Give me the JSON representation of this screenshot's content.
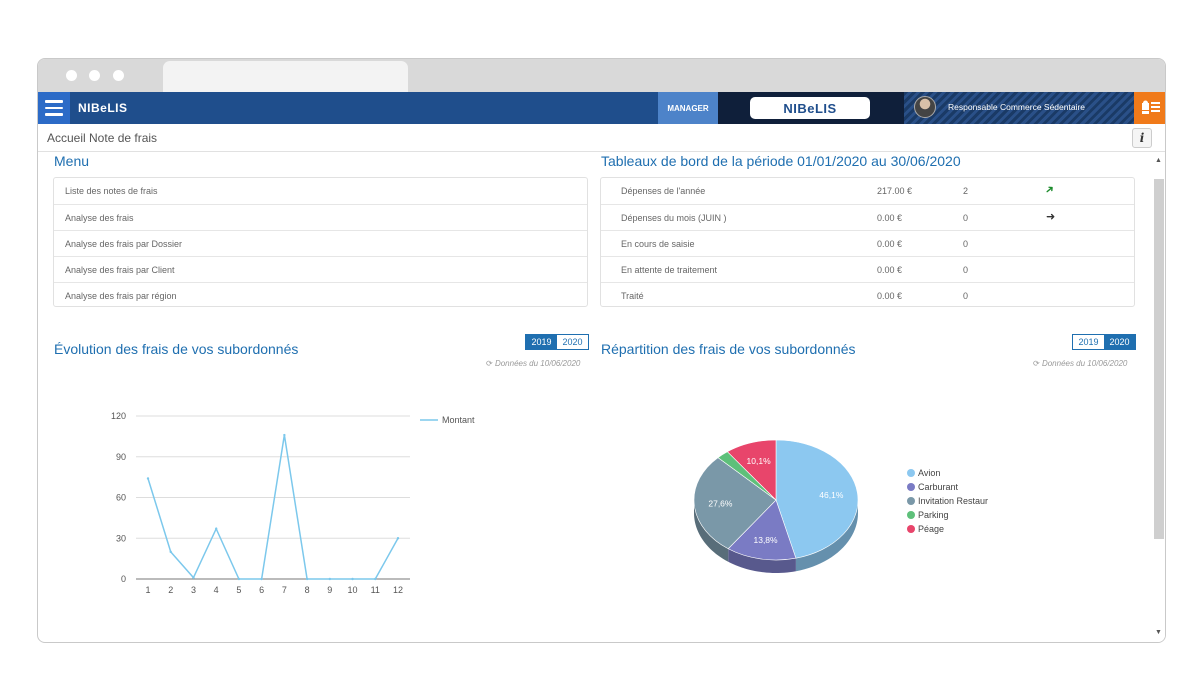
{
  "app": {
    "brand_small": "NIBeLIS",
    "brand_center": "NIBeLIS",
    "role": "MANAGER",
    "user": "Responsable Commerce Sédentaire"
  },
  "breadcrumb": "Accueil Note de frais",
  "info_label": "i",
  "menu": {
    "title": "Menu",
    "items": [
      "Liste des notes de frais",
      "Analyse des frais",
      "Analyse des frais par Dossier",
      "Analyse des frais par Client",
      "Analyse des frais par région"
    ]
  },
  "dashboard": {
    "title": "Tableaux de bord de la période 01/01/2020 au 30/06/2020",
    "rows": [
      {
        "label": "Dépenses de l'année",
        "amount": "217.00 €",
        "count": "2",
        "trend": "up"
      },
      {
        "label": "Dépenses du mois (JUIN )",
        "amount": "0.00 €",
        "count": "0",
        "trend": "flat"
      },
      {
        "label": "En cours de saisie",
        "amount": "0.00 €",
        "count": "0",
        "trend": ""
      },
      {
        "label": "En attente de traitement",
        "amount": "0.00 €",
        "count": "0",
        "trend": ""
      },
      {
        "label": "Traité",
        "amount": "0.00 €",
        "count": "0",
        "trend": ""
      }
    ],
    "colors": {
      "trend_up": "#1a8a2a",
      "trend_flat": "#333333"
    }
  },
  "evolution": {
    "title": "Évolution des frais de vos subordonnés",
    "years": [
      "2019",
      "2020"
    ],
    "active_year": "2019",
    "refresh_note": "Données du 10/06/2020"
  },
  "repartition": {
    "title": "Répartition des frais de vos subordonnés",
    "years": [
      "2019",
      "2020"
    ],
    "active_year": "2020",
    "refresh_note": "Données du 10/06/2020"
  },
  "chart_data": [
    {
      "type": "line",
      "x": [
        1,
        2,
        3,
        4,
        5,
        6,
        7,
        8,
        9,
        10,
        11,
        12
      ],
      "series": [
        {
          "name": "Montant",
          "values": [
            74,
            20,
            1,
            37,
            0,
            0,
            106,
            0,
            0,
            0,
            0,
            30
          ],
          "color": "#7cc8ec"
        }
      ],
      "yticks": [
        0,
        30,
        60,
        90,
        120
      ],
      "ylim": [
        0,
        120
      ],
      "grid": true,
      "legend": "top-right"
    },
    {
      "type": "pie",
      "categories": [
        "Avion",
        "Carburant",
        "Invitation Restaurant",
        "Parking",
        "Péage"
      ],
      "values": [
        46.1,
        13.8,
        27.6,
        2.4,
        10.1
      ],
      "labels": [
        "46,1%",
        "13,8%",
        "27,6%",
        "",
        "10,1%"
      ],
      "colors": [
        "#8cc8f0",
        "#7a7bc4",
        "#7a98a8",
        "#5ec07a",
        "#e8456b"
      ],
      "legend": "right"
    }
  ]
}
